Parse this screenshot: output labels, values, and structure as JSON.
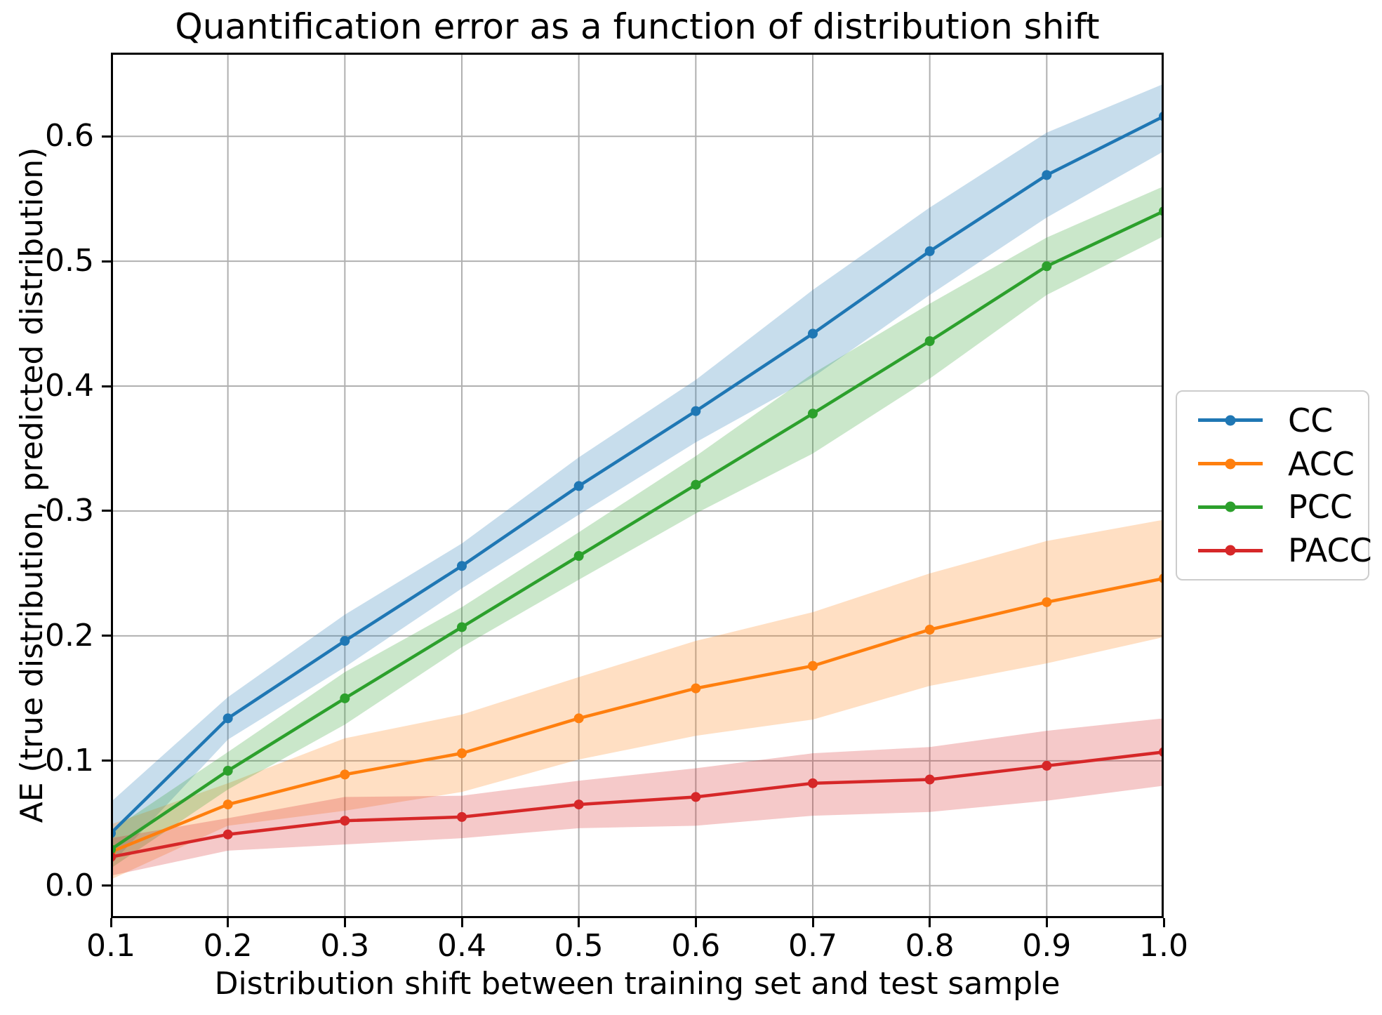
{
  "title": "Quantification error as a function of distribution shift",
  "chart_data": {
    "type": "line",
    "title": "Quantification error as a function of distribution shift",
    "xlabel": "Distribution shift between training set and test sample",
    "ylabel": "AE (true distribution, predicted distribution)",
    "grid": true,
    "legend_position": "center right, outside axes",
    "xlim": [
      0.1,
      1.0
    ],
    "ylim": [
      -0.026,
      0.667
    ],
    "x": [
      0.1,
      0.2,
      0.3,
      0.4,
      0.5,
      0.6,
      0.7,
      0.8,
      0.9,
      1.0
    ],
    "x_tick_labels": [
      "0.1",
      "0.2",
      "0.3",
      "0.4",
      "0.5",
      "0.6",
      "0.7",
      "0.8",
      "0.9",
      "1.0"
    ],
    "y_ticks": [
      0.0,
      0.1,
      0.2,
      0.3,
      0.4,
      0.5,
      0.6
    ],
    "y_tick_labels": [
      "0.0",
      "0.1",
      "0.2",
      "0.3",
      "0.4",
      "0.5",
      "0.6"
    ],
    "grid_color": "#b0b0b0",
    "spine_color": "#000000",
    "band_opacity": 0.25,
    "series": [
      {
        "name": "CC",
        "color": "#1f77b4",
        "values": [
          0.042,
          0.134,
          0.196,
          0.256,
          0.32,
          0.38,
          0.442,
          0.508,
          0.569,
          0.616
        ],
        "band_lower": [
          0.017,
          0.117,
          0.175,
          0.238,
          0.297,
          0.355,
          0.407,
          0.473,
          0.535,
          0.588
        ],
        "band_upper": [
          0.067,
          0.151,
          0.217,
          0.274,
          0.343,
          0.405,
          0.477,
          0.543,
          0.603,
          0.642
        ]
      },
      {
        "name": "ACC",
        "color": "#ff7f0e",
        "values": [
          0.027,
          0.065,
          0.089,
          0.106,
          0.134,
          0.158,
          0.176,
          0.205,
          0.227,
          0.246
        ],
        "band_lower": [
          0.005,
          0.048,
          0.06,
          0.075,
          0.101,
          0.12,
          0.133,
          0.16,
          0.178,
          0.199
        ],
        "band_upper": [
          0.049,
          0.082,
          0.118,
          0.137,
          0.167,
          0.196,
          0.219,
          0.25,
          0.276,
          0.293
        ]
      },
      {
        "name": "PCC",
        "color": "#2ca02c",
        "values": [
          0.029,
          0.092,
          0.15,
          0.207,
          0.264,
          0.321,
          0.378,
          0.436,
          0.496,
          0.54
        ],
        "band_lower": [
          0.014,
          0.077,
          0.129,
          0.191,
          0.245,
          0.298,
          0.346,
          0.406,
          0.473,
          0.52
        ],
        "band_upper": [
          0.044,
          0.107,
          0.171,
          0.223,
          0.283,
          0.344,
          0.41,
          0.466,
          0.519,
          0.56
        ]
      },
      {
        "name": "PACC",
        "color": "#d62728",
        "values": [
          0.023,
          0.041,
          0.052,
          0.055,
          0.065,
          0.071,
          0.082,
          0.085,
          0.096,
          0.107
        ],
        "band_lower": [
          0.008,
          0.028,
          0.033,
          0.038,
          0.046,
          0.048,
          0.056,
          0.059,
          0.068,
          0.08
        ],
        "band_upper": [
          0.038,
          0.054,
          0.071,
          0.072,
          0.084,
          0.094,
          0.106,
          0.111,
          0.124,
          0.134
        ]
      }
    ]
  },
  "legend": {
    "entries": [
      {
        "label": "CC",
        "color": "#1f77b4"
      },
      {
        "label": "ACC",
        "color": "#ff7f0e"
      },
      {
        "label": "PCC",
        "color": "#2ca02c"
      },
      {
        "label": "PACC",
        "color": "#d62728"
      }
    ]
  }
}
